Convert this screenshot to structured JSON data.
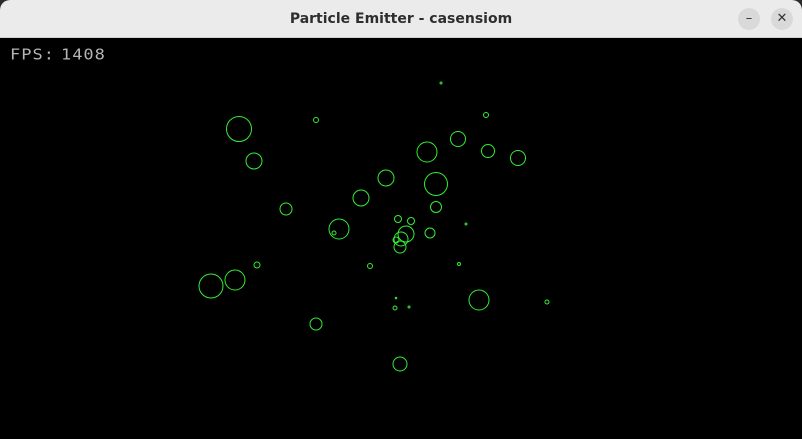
{
  "window": {
    "title": "Particle Emitter - casensiom",
    "minimize_glyph": "–",
    "close_glyph": "✕"
  },
  "hud": {
    "fps_label": "FPS:",
    "fps_value": "1408"
  },
  "colors": {
    "background": "#000000",
    "particle_stroke": "#33ee33",
    "hud_text": "#b5b5b5"
  }
}
